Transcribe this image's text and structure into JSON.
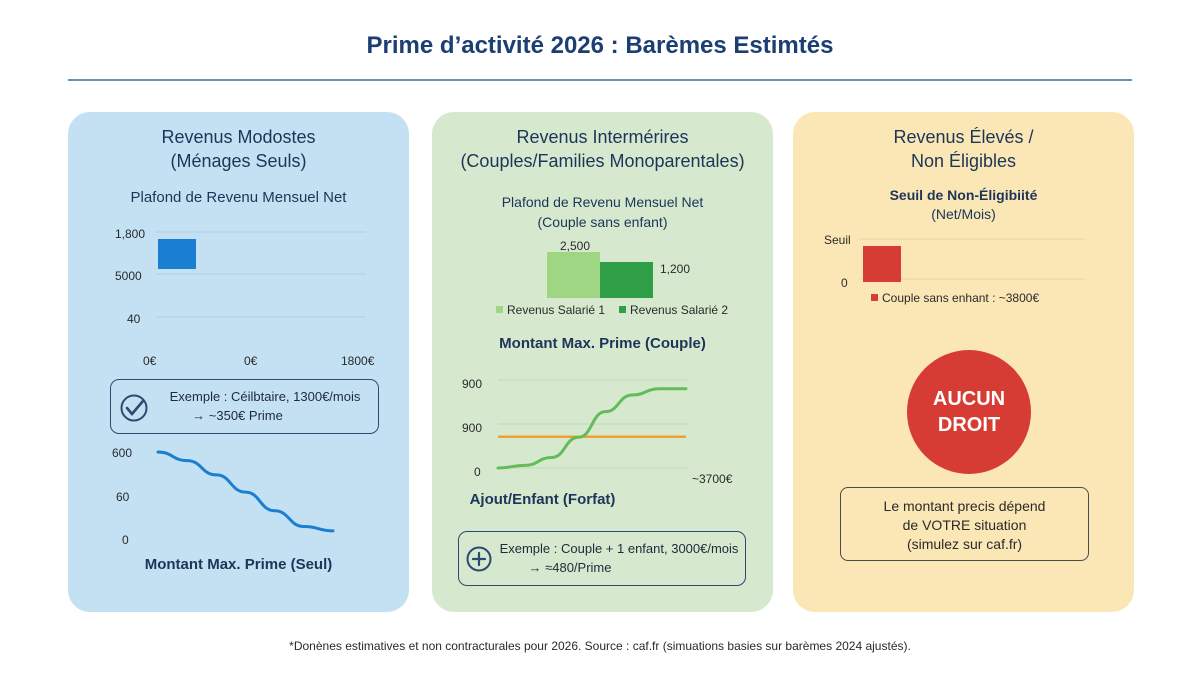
{
  "title": "Prime d’activité 2026 : Barèmes Estimtés",
  "footer": "*Donènes estimatives et non contracturales pour 2026. Source : caf.fr (simuations basies sur barèmes 2024 ajustés).",
  "colors": {
    "title": "#1b3f73",
    "panel1": "#c4e1f3",
    "panel2": "#d6e9cf",
    "panel3": "#fbe7b5",
    "blue_bar": "#1a7fd0",
    "green_light": "#9ed684",
    "green_dark": "#2f9e47",
    "curve_green": "#63bb5a",
    "orange_line": "#f0a030",
    "red": "#d63c33"
  },
  "panel1": {
    "title_line1": "Revenus Modostes",
    "title_line2": "(Ménages Seuls)",
    "chart_title": "Plafond de Revenu Mensuel Net",
    "bottom_title": "Montant Max. Prime (Seul)",
    "example_line1": "Exemple : Céilbtaire, 1300€/mois",
    "example_line2": "→ ~350€ Prime",
    "example_icon": "check-circle-icon"
  },
  "panel2": {
    "title_line1": "Revenus Intermérires",
    "title_line2": "(Couples/Families Monoparentales)",
    "chart_title_line1": "Plafond de Revenu Mensuel Net",
    "chart_title_line2": "(Couple sans enfant)",
    "curve_title": "Montant Max. Prime (Couple)",
    "curve_bottom_title": "Ajout/Enfant (Forfat)",
    "example_line1": "Exemple : Couple + 1 enfant, 3000€/mois",
    "example_line2": "→ ≈480/Prime",
    "example_icon": "plus-circle-icon"
  },
  "panel3": {
    "title_line1": "Revenus Élevés /",
    "title_line2": "Non Éligibles",
    "chart_title_line1": "Seuil de Non-Éligibiité",
    "chart_title_line2": "(Net/Mois)",
    "badge_line1": "AUCUN",
    "badge_line2": "DROIT",
    "note_line1": "Le montant precis dépend",
    "note_line2": "de VOTRE situation",
    "note_line3": "(simulez sur caf.fr)"
  },
  "chart_data": [
    {
      "type": "bar",
      "title": "Plafond de Revenu Mensuel Net",
      "y_tick_labels": [
        "1,800",
        "5000",
        "40"
      ],
      "x_tick_labels": [
        "0€",
        "0€",
        "1800€"
      ],
      "categories": [
        ""
      ],
      "values": [
        1800
      ],
      "ylim": [
        0,
        1800
      ]
    },
    {
      "type": "line",
      "title": "Montant Max. Prime (Seul)",
      "y_tick_labels": [
        "600",
        "60",
        "0"
      ],
      "series": [
        {
          "values": [
            600,
            540,
            440,
            320,
            190,
            80,
            50
          ]
        }
      ],
      "ylim": [
        0,
        600
      ]
    },
    {
      "type": "bar",
      "title": "Plafond de Revenu Mensuel Net (Couple sans enfant)",
      "categories": [
        "Revenus Salarié 1",
        "Revenus Salarié 2"
      ],
      "values": [
        2500,
        1200
      ],
      "data_labels": [
        "2,500",
        "1,200"
      ],
      "legend": [
        "Revenus Salarié 1",
        "Revenus Salarié 2"
      ],
      "legend_position": "bottom"
    },
    {
      "type": "line",
      "title": "Montant Max. Prime (Couple)",
      "y_tick_labels": [
        "900",
        "900",
        "0"
      ],
      "x_end_label": "~3700€",
      "series": [
        {
          "name": "curve",
          "values": [
            0,
            30,
            120,
            350,
            640,
            830,
            900,
            900
          ]
        },
        {
          "name": "flat",
          "values": [
            355,
            355,
            355,
            355,
            355,
            355,
            355,
            355
          ]
        }
      ],
      "ylim": [
        0,
        1000
      ]
    },
    {
      "type": "bar",
      "title": "Seuil de Non-Éligibiité (Net/Mois)",
      "y_tick_labels": [
        "Seuil",
        "0"
      ],
      "categories": [
        "Couple sans enhant"
      ],
      "values": [
        3800
      ],
      "legend": [
        "Couple sans enhant : ~3800€"
      ],
      "legend_position": "bottom"
    }
  ]
}
